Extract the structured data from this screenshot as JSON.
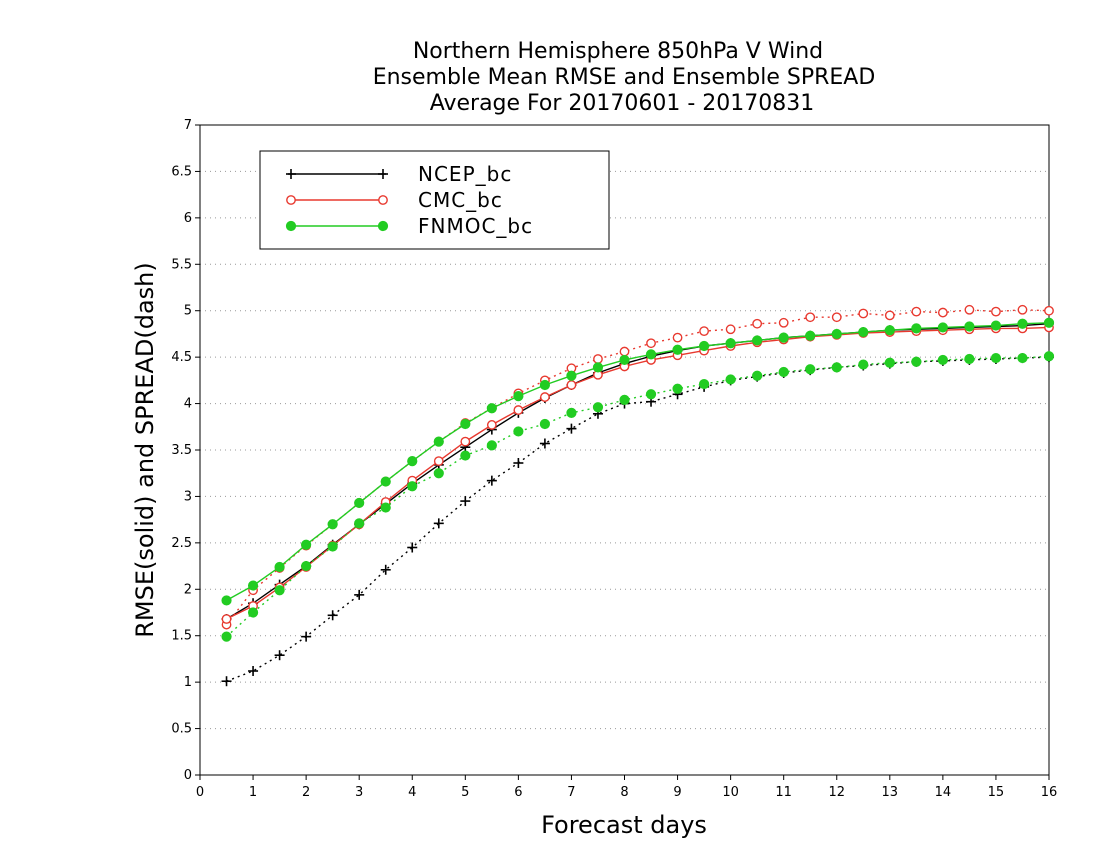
{
  "chart_data": {
    "type": "line",
    "title_lines": [
      "Northern Hemisphere 850hPa V Wind",
      "Ensemble Mean RMSE and Ensemble SPREAD",
      "Average For 20170601 - 20170831"
    ],
    "xlabel": "Forecast days",
    "ylabel": "RMSE(solid) and SPREAD(dash)",
    "xlim": [
      0,
      16
    ],
    "ylim": [
      0,
      7
    ],
    "x_ticks": [
      "0",
      "1",
      "2",
      "3",
      "4",
      "5",
      "6",
      "7",
      "8",
      "9",
      "10",
      "11",
      "12",
      "13",
      "14",
      "15",
      "16"
    ],
    "y_ticks": [
      "0",
      "0.5",
      "1",
      "1.5",
      "2",
      "2.5",
      "3",
      "3.5",
      "4",
      "4.5",
      "5",
      "5.5",
      "6",
      "6.5",
      "7"
    ],
    "grid": "horizontal dotted",
    "legend_position": "top-left",
    "x": [
      0.5,
      1,
      1.5,
      2,
      2.5,
      3,
      3.5,
      4,
      4.5,
      5,
      5.5,
      6,
      6.5,
      7,
      7.5,
      8,
      8.5,
      9,
      9.5,
      10,
      10.5,
      11,
      11.5,
      12,
      12.5,
      13,
      13.5,
      14,
      14.5,
      15,
      15.5,
      16
    ],
    "series": [
      {
        "name": "NCEP_bc",
        "color": "#000000",
        "marker": "plus",
        "rmse": [
          1.68,
          1.85,
          2.05,
          2.25,
          2.48,
          2.7,
          2.92,
          3.14,
          3.34,
          3.53,
          3.72,
          3.9,
          4.06,
          4.2,
          4.33,
          4.43,
          4.51,
          4.57,
          4.62,
          4.65,
          4.68,
          4.71,
          4.73,
          4.75,
          4.77,
          4.79,
          4.8,
          4.81,
          4.82,
          4.83,
          4.84,
          4.86
        ],
        "spread": [
          1.01,
          1.12,
          1.29,
          1.49,
          1.72,
          1.94,
          2.21,
          2.45,
          2.71,
          2.95,
          3.17,
          3.36,
          3.57,
          3.73,
          3.89,
          4.0,
          4.02,
          4.1,
          4.18,
          4.25,
          4.29,
          4.33,
          4.36,
          4.39,
          4.41,
          4.43,
          4.45,
          4.46,
          4.47,
          4.48,
          4.49,
          4.5
        ]
      },
      {
        "name": "CMC_bc",
        "color": "#e8392f",
        "marker": "open-circle",
        "rmse": [
          1.68,
          1.82,
          2.02,
          2.24,
          2.47,
          2.7,
          2.94,
          3.17,
          3.38,
          3.59,
          3.77,
          3.93,
          4.07,
          4.2,
          4.31,
          4.4,
          4.47,
          4.52,
          4.57,
          4.62,
          4.66,
          4.69,
          4.72,
          4.74,
          4.76,
          4.77,
          4.78,
          4.79,
          4.8,
          4.81,
          4.81,
          4.82
        ],
        "spread": [
          1.62,
          1.99,
          2.23,
          2.47,
          2.7,
          2.93,
          3.16,
          3.38,
          3.59,
          3.79,
          3.95,
          4.11,
          4.25,
          4.38,
          4.48,
          4.56,
          4.65,
          4.71,
          4.78,
          4.8,
          4.86,
          4.87,
          4.93,
          4.93,
          4.97,
          4.95,
          4.99,
          4.98,
          5.01,
          4.99,
          5.01,
          5.0
        ]
      },
      {
        "name": "FNMOC_bc",
        "color": "#22cc22",
        "marker": "filled-circle",
        "rmse": [
          1.88,
          2.04,
          2.24,
          2.48,
          2.7,
          2.93,
          3.16,
          3.38,
          3.59,
          3.78,
          3.95,
          4.08,
          4.2,
          4.3,
          4.39,
          4.47,
          4.53,
          4.58,
          4.62,
          4.65,
          4.68,
          4.71,
          4.73,
          4.75,
          4.77,
          4.79,
          4.81,
          4.82,
          4.83,
          4.84,
          4.86,
          4.87
        ],
        "spread": [
          1.49,
          1.75,
          1.99,
          2.25,
          2.46,
          2.71,
          2.88,
          3.11,
          3.25,
          3.44,
          3.55,
          3.7,
          3.78,
          3.9,
          3.96,
          4.04,
          4.1,
          4.16,
          4.21,
          4.26,
          4.3,
          4.34,
          4.37,
          4.39,
          4.42,
          4.44,
          4.45,
          4.47,
          4.48,
          4.49,
          4.49,
          4.51
        ]
      }
    ]
  }
}
